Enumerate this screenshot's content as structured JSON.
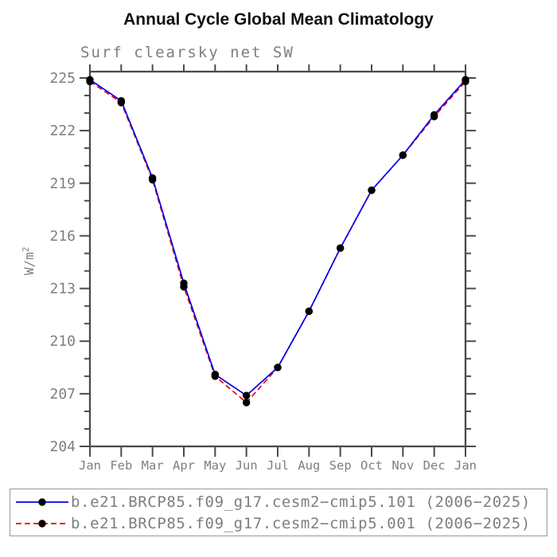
{
  "chart_data": {
    "type": "line",
    "title": "Annual Cycle Global Mean Climatology",
    "subtitle": "Surf clearsky net SW",
    "ylabel_base": "W/m",
    "ylabel_sup": "2",
    "x_categories": [
      "Jan",
      "Feb",
      "Mar",
      "Apr",
      "May",
      "Jun",
      "Jul",
      "Aug",
      "Sep",
      "Oct",
      "Nov",
      "Dec",
      "Jan"
    ],
    "ylim": [
      204,
      225
    ],
    "ytick_major_step": 3,
    "ytick_minor_step": 1,
    "grid": "off",
    "legend_position": "bottom",
    "series": [
      {
        "name": "b.e21.BRCP85.f09_g17.cesm2−cmip5.101 (2006−2025)",
        "color": "#0000ee",
        "line_style": "solid",
        "marker": "black-dot",
        "values": [
          224.9,
          223.7,
          219.3,
          213.3,
          208.1,
          206.9,
          208.5,
          211.7,
          215.3,
          218.6,
          220.6,
          222.9,
          224.9
        ]
      },
      {
        "name": "b.e21.BRCP85.f09_g17.cesm2−cmip5.001 (2006−2025)",
        "color": "#ee0000",
        "line_style": "dashed",
        "marker": "black-dot",
        "values": [
          224.8,
          223.6,
          219.2,
          213.1,
          208.0,
          206.5,
          208.5,
          211.7,
          215.3,
          218.6,
          220.6,
          222.8,
          224.8
        ]
      }
    ]
  },
  "colors": {
    "marker": "#000000",
    "axis": "#4a4a4a",
    "tick_label": "#7e7e7e",
    "title": "#111111",
    "subtitle": "#7e7e7e",
    "legend_border": "#999999",
    "legend_text": "#7e7e7e"
  }
}
